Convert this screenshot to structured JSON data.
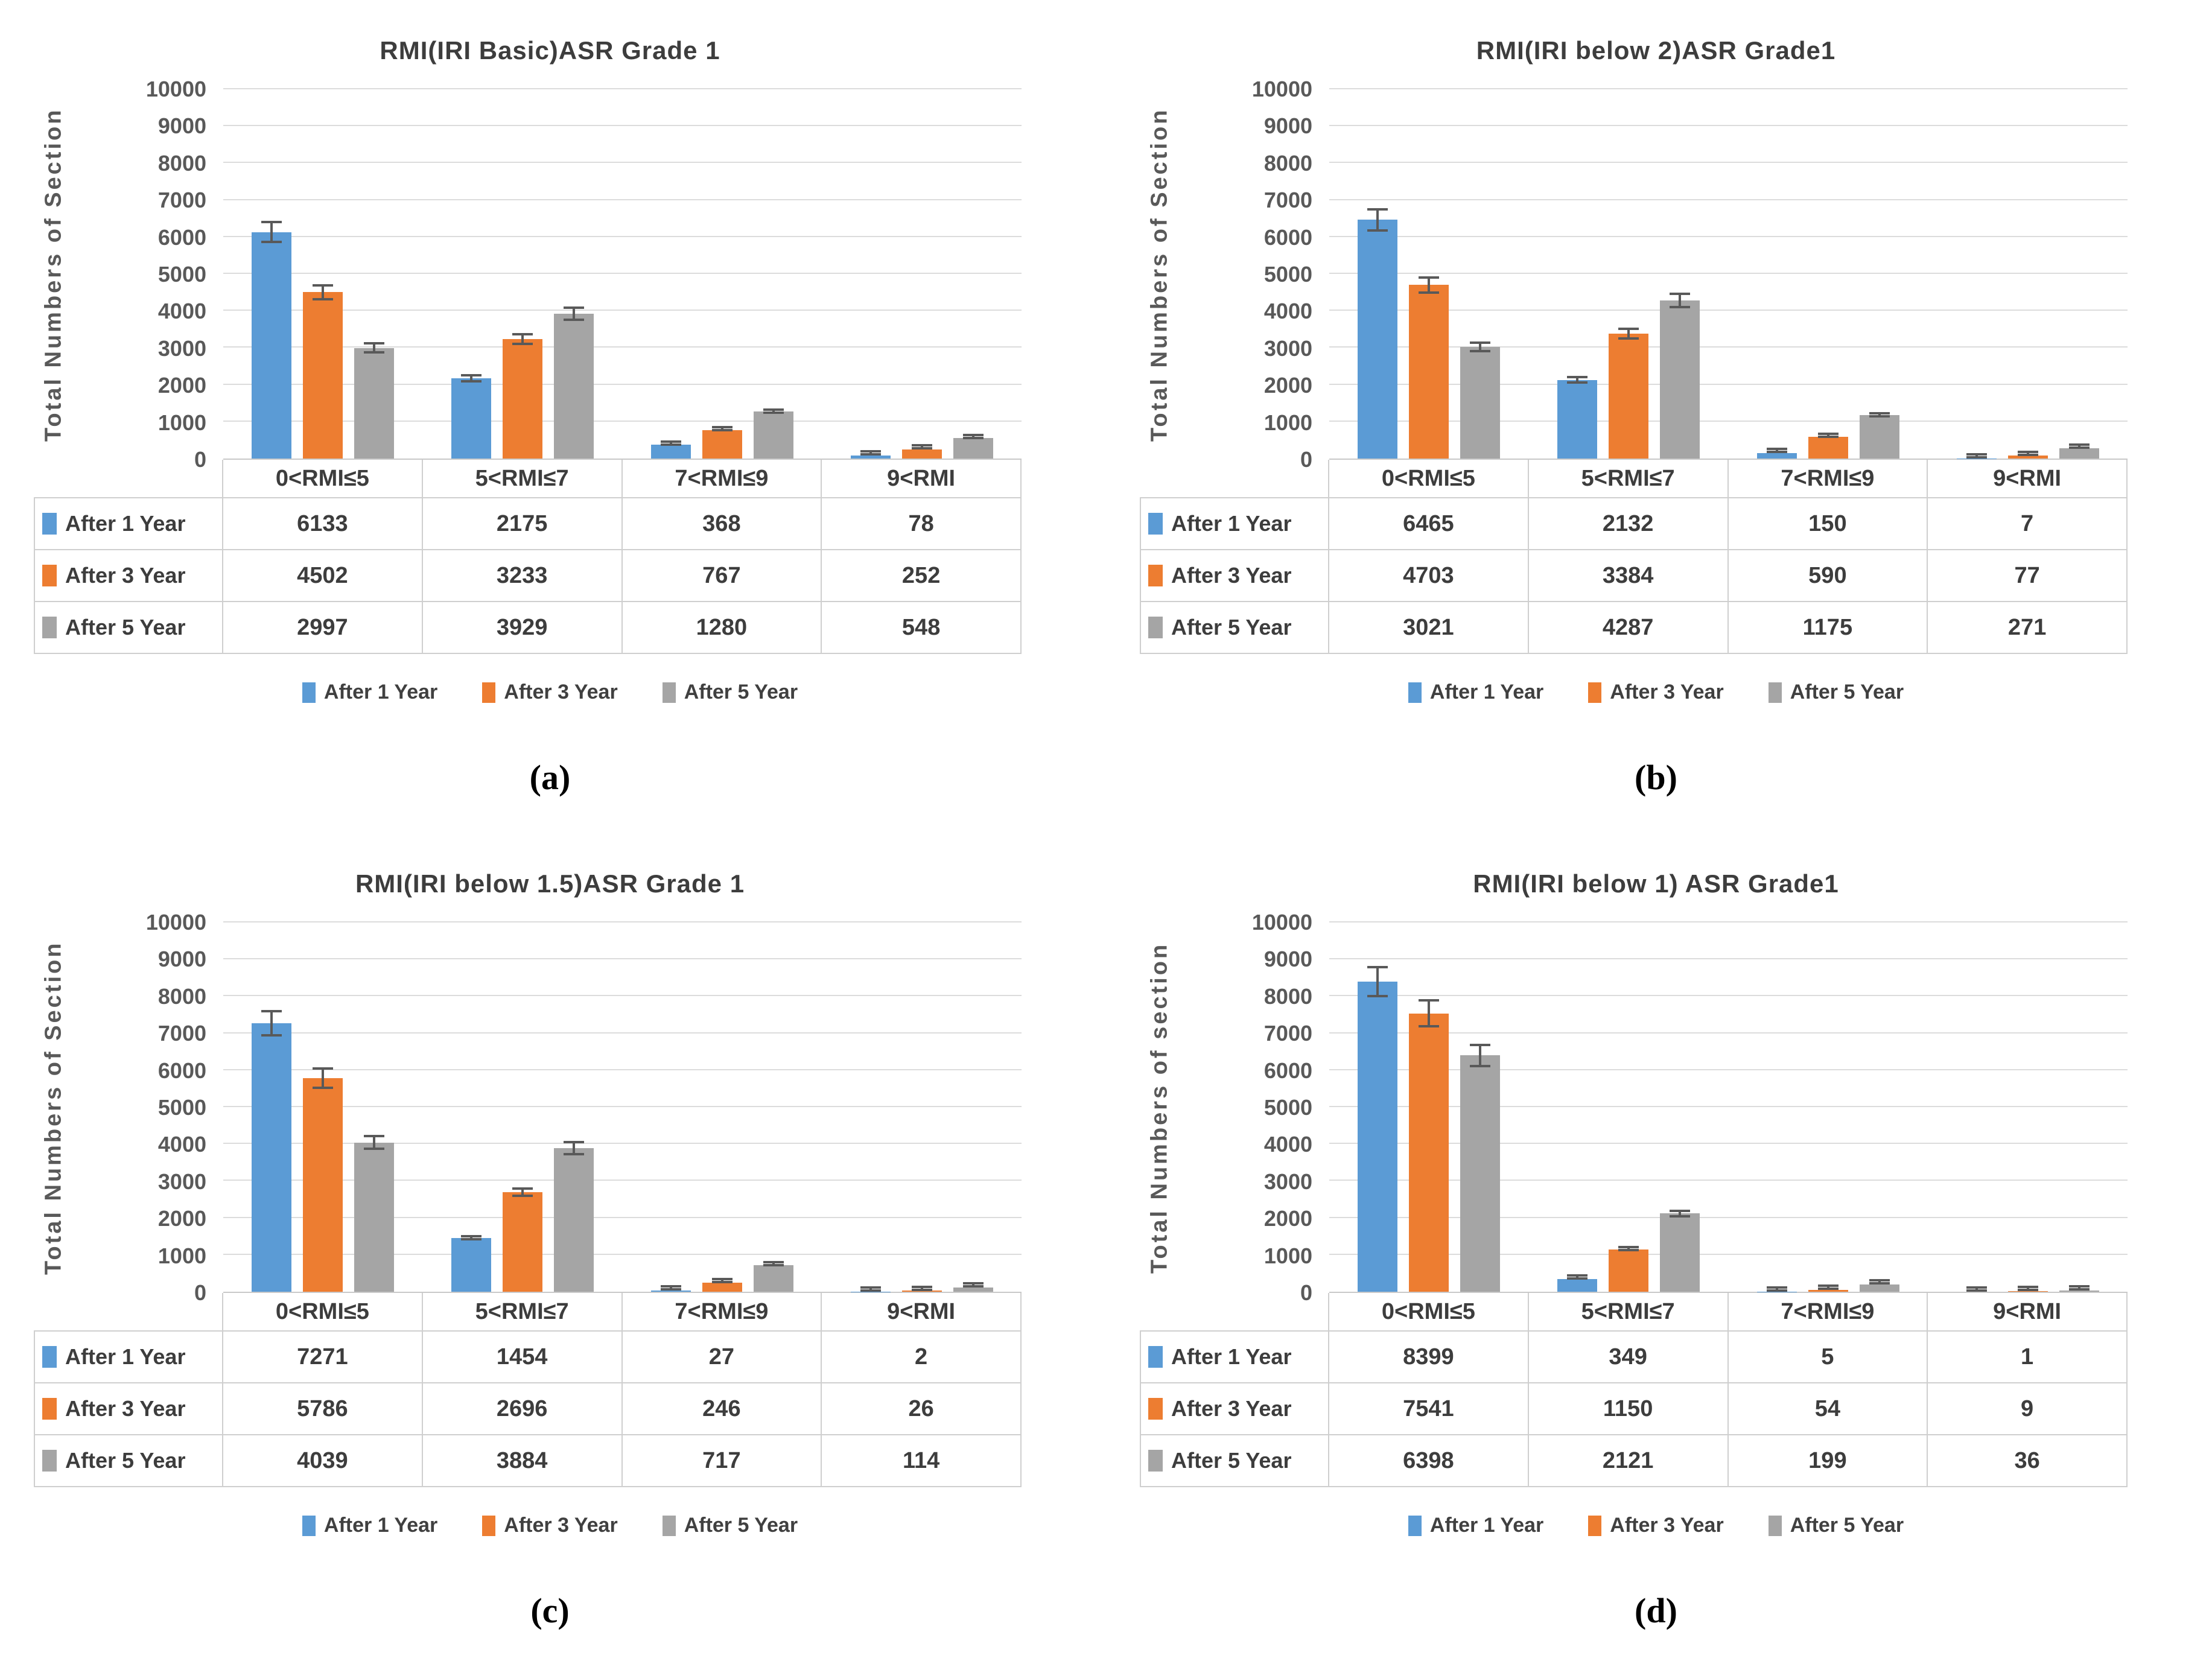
{
  "palette": {
    "after_1_year": "#5B9BD5",
    "after_3_year": "#ED7D31",
    "after_5_year": "#A5A5A5",
    "error_bar": "#595959",
    "gridline": "#DCDCDC",
    "text": "#3D3D3D"
  },
  "chart_data": [
    {
      "id": "a",
      "type": "bar",
      "title": "RMI(IRI Basic)ASR Grade 1",
      "ylabel": "Total Numbers of Section",
      "caption": "(a)",
      "categories": [
        "0<RMI≤5",
        "5<RMI≤7",
        "7<RMI≤9",
        "9<RMI"
      ],
      "series": [
        {
          "name": "After 1 Year",
          "color": "#5B9BD5",
          "values": [
            6133,
            2175,
            368,
            78
          ]
        },
        {
          "name": "After 3 Year",
          "color": "#ED7D31",
          "values": [
            4502,
            3233,
            767,
            252
          ]
        },
        {
          "name": "After 5 Year",
          "color": "#A5A5A5",
          "values": [
            2997,
            3929,
            1280,
            548
          ]
        }
      ],
      "ylim": [
        0,
        10000
      ],
      "yticks": [
        0,
        1000,
        2000,
        3000,
        4000,
        5000,
        6000,
        7000,
        8000,
        9000,
        10000
      ],
      "grid": true,
      "error_bars": true,
      "error_fraction": 0.05,
      "legend_position": "bottom",
      "data_table": true
    },
    {
      "id": "b",
      "type": "bar",
      "title": "RMI(IRI below 2)ASR Grade1",
      "ylabel": "Total Numbers of Section",
      "caption": "(b)",
      "categories": [
        "0<RMI≤5",
        "5<RMI≤7",
        "7<RMI≤9",
        "9<RMI"
      ],
      "series": [
        {
          "name": "After 1 Year",
          "color": "#5B9BD5",
          "values": [
            6465,
            2132,
            150,
            7
          ]
        },
        {
          "name": "After 3 Year",
          "color": "#ED7D31",
          "values": [
            4703,
            3384,
            590,
            77
          ]
        },
        {
          "name": "After 5 Year",
          "color": "#A5A5A5",
          "values": [
            3021,
            4287,
            1175,
            271
          ]
        }
      ],
      "ylim": [
        0,
        10000
      ],
      "yticks": [
        0,
        1000,
        2000,
        3000,
        4000,
        5000,
        6000,
        7000,
        8000,
        9000,
        10000
      ],
      "grid": true,
      "error_bars": true,
      "error_fraction": 0.05,
      "legend_position": "bottom",
      "data_table": true
    },
    {
      "id": "c",
      "type": "bar",
      "title": "RMI(IRI below 1.5)ASR Grade 1",
      "ylabel": "Total Numbers of Section",
      "caption": "(c)",
      "categories": [
        "0<RMI≤5",
        "5<RMI≤7",
        "7<RMI≤9",
        "9<RMI"
      ],
      "series": [
        {
          "name": "After 1 Year",
          "color": "#5B9BD5",
          "values": [
            7271,
            1454,
            27,
            2
          ]
        },
        {
          "name": "After 3 Year",
          "color": "#ED7D31",
          "values": [
            5786,
            2696,
            246,
            26
          ]
        },
        {
          "name": "After 5 Year",
          "color": "#A5A5A5",
          "values": [
            4039,
            3884,
            717,
            114
          ]
        }
      ],
      "ylim": [
        0,
        10000
      ],
      "yticks": [
        0,
        1000,
        2000,
        3000,
        4000,
        5000,
        6000,
        7000,
        8000,
        9000,
        10000
      ],
      "grid": true,
      "error_bars": true,
      "error_fraction": 0.05,
      "legend_position": "bottom",
      "data_table": true
    },
    {
      "id": "d",
      "type": "bar",
      "title": "RMI(IRI below 1) ASR Grade1",
      "ylabel": "Total Numbers of section",
      "caption": "(d)",
      "categories": [
        "0<RMI≤5",
        "5<RMI≤7",
        "7<RMI≤9",
        "9<RMI"
      ],
      "series": [
        {
          "name": "After 1 Year",
          "color": "#5B9BD5",
          "values": [
            8399,
            349,
            5,
            1
          ]
        },
        {
          "name": "After 3 Year",
          "color": "#ED7D31",
          "values": [
            7541,
            1150,
            54,
            9
          ]
        },
        {
          "name": "After 5 Year",
          "color": "#A5A5A5",
          "values": [
            6398,
            2121,
            199,
            36
          ]
        }
      ],
      "ylim": [
        0,
        10000
      ],
      "yticks": [
        0,
        1000,
        2000,
        3000,
        4000,
        5000,
        6000,
        7000,
        8000,
        9000,
        10000
      ],
      "grid": true,
      "error_bars": true,
      "error_fraction": 0.05,
      "legend_position": "bottom",
      "data_table": true
    }
  ]
}
